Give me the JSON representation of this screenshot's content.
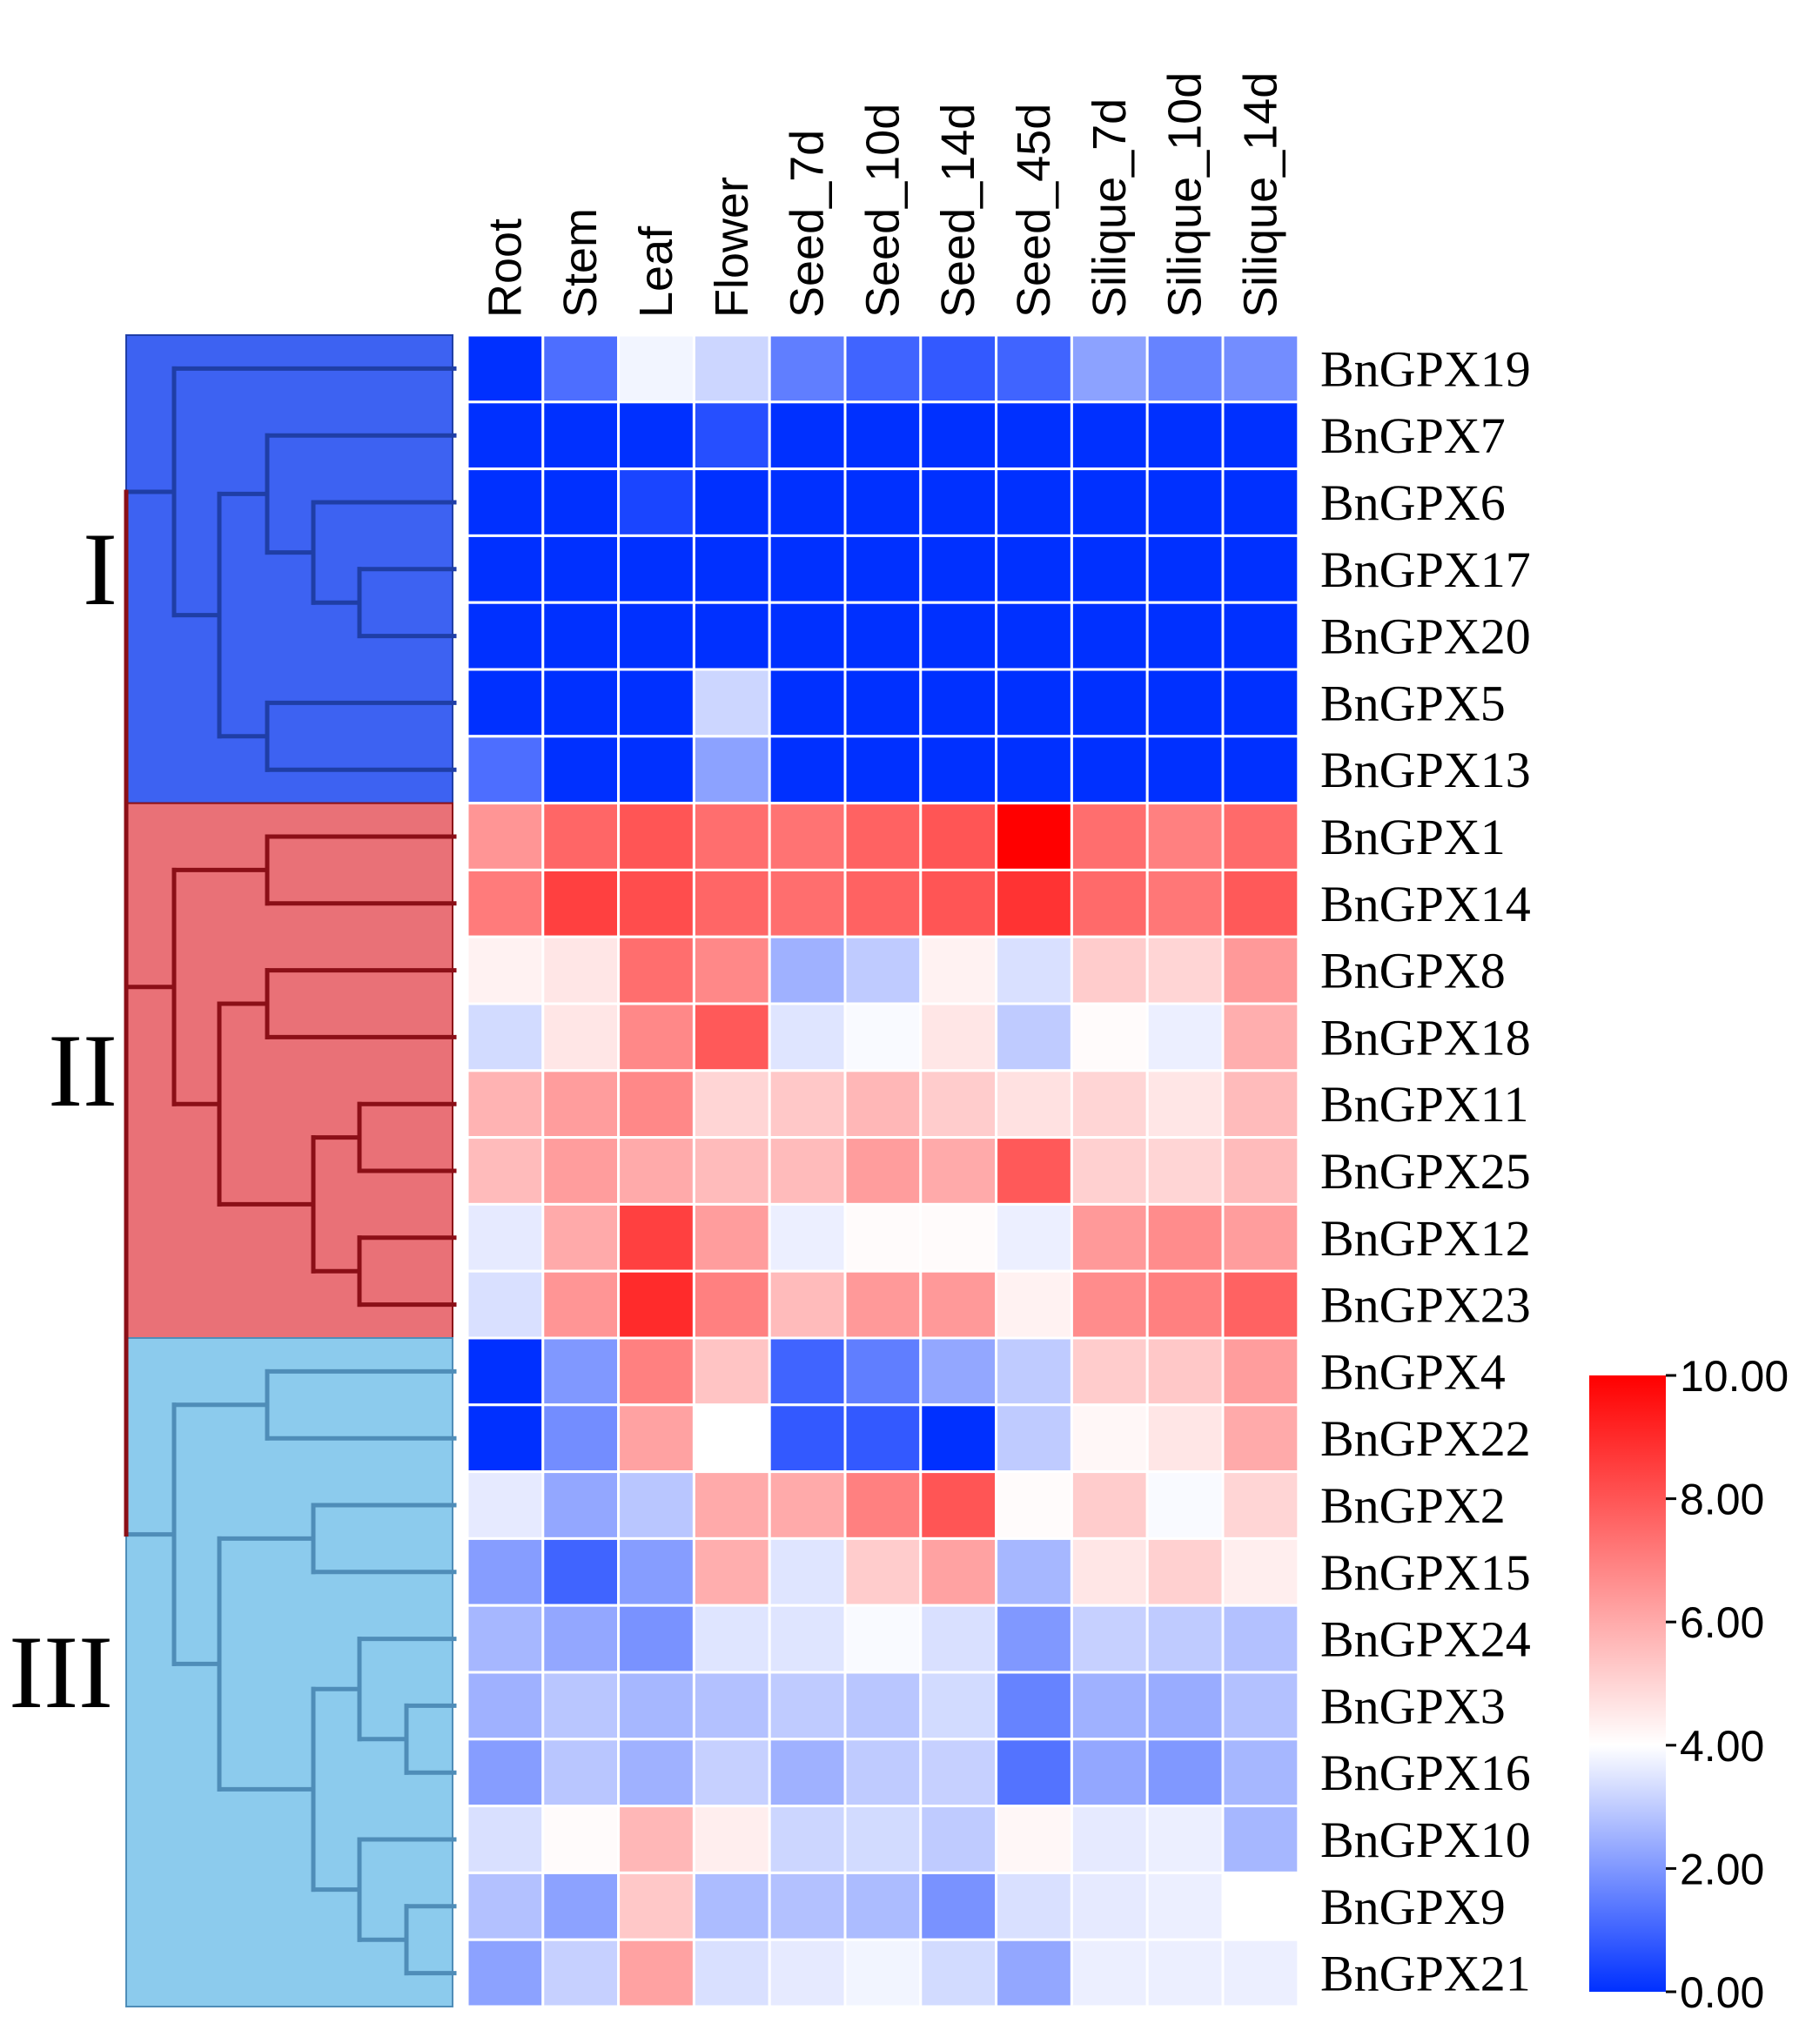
{
  "chart_data": {
    "type": "heatmap",
    "columns": [
      "Root",
      "Stem",
      "Leaf",
      "Flower",
      "Seed_7d",
      "Seed_10d",
      "Seed_14d",
      "Seed_45d",
      "Silique_7d",
      "Silique_10d",
      "Silique_14d"
    ],
    "rows": [
      "BnGPX19",
      "BnGPX7",
      "BnGPX6",
      "BnGPX17",
      "BnGPX20",
      "BnGPX5",
      "BnGPX13",
      "BnGPX1",
      "BnGPX14",
      "BnGPX8",
      "BnGPX18",
      "BnGPX11",
      "BnGPX25",
      "BnGPX12",
      "BnGPX23",
      "BnGPX4",
      "BnGPX22",
      "BnGPX2",
      "BnGPX15",
      "BnGPX24",
      "BnGPX3",
      "BnGPX16",
      "BnGPX10",
      "BnGPX9",
      "BnGPX21"
    ],
    "values": [
      [
        0.0,
        1.2,
        3.8,
        3.2,
        1.5,
        1.0,
        0.8,
        1.0,
        2.2,
        1.6,
        1.8
      ],
      [
        0.0,
        0.0,
        0.0,
        0.6,
        0.0,
        0.0,
        0.0,
        0.0,
        0.0,
        0.0,
        0.0
      ],
      [
        0.0,
        0.0,
        0.4,
        0.0,
        0.0,
        0.0,
        0.0,
        0.0,
        0.0,
        0.0,
        0.0
      ],
      [
        0.0,
        0.0,
        0.0,
        0.0,
        0.0,
        0.0,
        0.0,
        0.0,
        0.0,
        0.0,
        0.0
      ],
      [
        0.0,
        0.0,
        0.0,
        0.0,
        0.0,
        0.0,
        0.0,
        0.0,
        0.0,
        0.0,
        0.0
      ],
      [
        0.0,
        0.0,
        0.0,
        3.2,
        0.0,
        0.0,
        0.0,
        0.0,
        0.0,
        0.0,
        0.0
      ],
      [
        1.2,
        0.0,
        0.0,
        2.2,
        0.0,
        0.0,
        0.0,
        0.0,
        0.0,
        0.0,
        0.0
      ],
      [
        6.5,
        7.6,
        8.0,
        7.4,
        7.3,
        7.7,
        8.0,
        10.0,
        7.4,
        7.0,
        7.5
      ],
      [
        7.1,
        8.5,
        8.2,
        7.6,
        7.4,
        7.7,
        8.0,
        8.8,
        7.5,
        7.2,
        7.9
      ],
      [
        4.3,
        4.6,
        7.4,
        6.8,
        2.5,
        3.0,
        4.3,
        3.4,
        5.2,
        5.0,
        6.4
      ],
      [
        3.3,
        4.6,
        6.8,
        7.9,
        3.5,
        3.9,
        4.6,
        3.0,
        4.1,
        3.7,
        5.9
      ],
      [
        5.8,
        6.3,
        6.8,
        5.0,
        5.3,
        5.7,
        5.2,
        4.7,
        5.0,
        4.6,
        5.6
      ],
      [
        5.6,
        6.3,
        6.0,
        5.6,
        5.6,
        6.3,
        6.0,
        7.9,
        5.1,
        5.0,
        5.6
      ],
      [
        3.6,
        6.0,
        8.5,
        6.3,
        3.7,
        4.1,
        4.1,
        3.7,
        6.4,
        6.7,
        6.3
      ],
      [
        3.4,
        6.5,
        9.0,
        7.0,
        5.6,
        6.4,
        6.4,
        4.3,
        6.7,
        7.0,
        7.7
      ],
      [
        0.0,
        2.0,
        7.0,
        5.4,
        1.0,
        1.5,
        2.3,
        3.0,
        5.2,
        5.3,
        6.3
      ],
      [
        0.0,
        1.8,
        6.2,
        4.0,
        0.8,
        0.8,
        0.0,
        3.0,
        4.2,
        4.6,
        6.0
      ],
      [
        3.6,
        2.3,
        2.9,
        6.0,
        6.0,
        7.0,
        8.0,
        4.1,
        5.2,
        3.9,
        5.0
      ],
      [
        2.1,
        1.0,
        2.1,
        5.9,
        3.5,
        5.2,
        6.2,
        2.6,
        4.6,
        5.1,
        4.4
      ],
      [
        2.6,
        2.3,
        1.9,
        3.5,
        3.5,
        3.9,
        3.4,
        2.0,
        3.1,
        3.0,
        2.8
      ],
      [
        2.5,
        2.9,
        2.6,
        2.8,
        3.0,
        2.9,
        3.3,
        1.6,
        2.5,
        2.4,
        2.8
      ],
      [
        2.1,
        2.9,
        2.5,
        3.1,
        2.5,
        3.0,
        3.1,
        1.3,
        2.3,
        2.0,
        2.6
      ],
      [
        3.4,
        4.1,
        5.7,
        4.4,
        3.2,
        3.3,
        3.0,
        4.2,
        3.6,
        3.7,
        2.6
      ],
      [
        2.8,
        2.2,
        5.3,
        2.7,
        2.8,
        2.7,
        1.9,
        3.4,
        3.6,
        3.7,
        4.0
      ],
      [
        2.2,
        3.1,
        6.2,
        3.4,
        3.6,
        3.8,
        3.3,
        2.3,
        3.7,
        3.7,
        3.7
      ]
    ],
    "colorbar": {
      "min": 0,
      "max": 10,
      "mid": 4,
      "low_color": "#0030ff",
      "mid_color": "#ffffff",
      "high_color": "#ff0000",
      "ticks": [
        "0.00",
        "2.00",
        "4.00",
        "6.00",
        "8.00",
        "10.00"
      ]
    },
    "clusters": [
      {
        "label": "I",
        "row_count": 7,
        "color": "#3d62f2",
        "line_color": "#1f3ea6"
      },
      {
        "label": "II",
        "row_count": 8,
        "color": "#e97177",
        "line_color": "#8b0f17"
      },
      {
        "label": "III",
        "row_count": 10,
        "color": "#8ccbed",
        "line_color": "#4f8db8"
      }
    ]
  }
}
